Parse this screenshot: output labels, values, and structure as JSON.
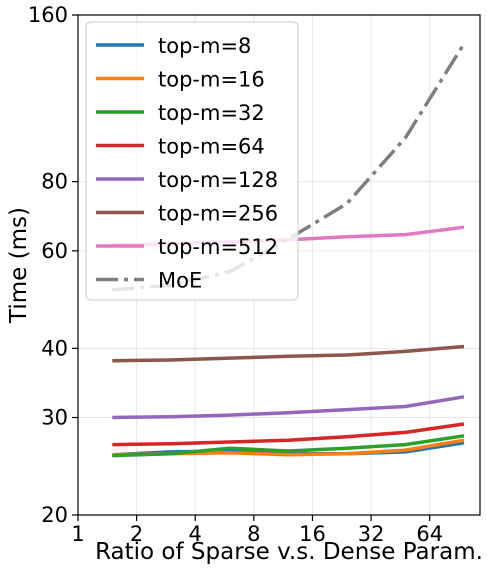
{
  "chart_data": {
    "type": "line",
    "xlabel": "Ratio of Sparse v.s. Dense Param.",
    "ylabel": "Time (ms)",
    "xscale": "log2",
    "yscale": "log",
    "xlim": [
      1,
      116
    ],
    "ylim": [
      20,
      160
    ],
    "xticks": [
      1,
      2,
      4,
      8,
      16,
      32,
      64
    ],
    "xtick_labels": [
      "1",
      "2",
      "4",
      "8",
      "16",
      "32",
      "64"
    ],
    "yticks": [
      20,
      30,
      40,
      60,
      80,
      160
    ],
    "ytick_labels": [
      "20",
      "30",
      "40",
      "60",
      "80",
      "160"
    ],
    "grid": true,
    "legend_position": "top-left",
    "x": [
      1.5,
      3,
      6,
      12,
      24,
      48,
      96
    ],
    "series": [
      {
        "name": "top-m=8",
        "color": "#1f77b4",
        "style": "solid",
        "values": [
          25.7,
          26.0,
          26.1,
          25.8,
          25.8,
          26.0,
          27.0
        ]
      },
      {
        "name": "top-m=16",
        "color": "#ff7f0e",
        "style": "solid",
        "values": [
          25.7,
          25.8,
          25.9,
          25.7,
          25.8,
          26.2,
          27.3
        ]
      },
      {
        "name": "top-m=32",
        "color": "#2ca02c",
        "style": "solid",
        "values": [
          25.6,
          25.8,
          26.4,
          26.1,
          26.4,
          26.8,
          27.8
        ]
      },
      {
        "name": "top-m=64",
        "color": "#d62728",
        "style": "solid",
        "values": [
          26.8,
          26.9,
          27.1,
          27.3,
          27.7,
          28.2,
          29.2
        ]
      },
      {
        "name": "top-m=128",
        "color": "#9467bd",
        "style": "solid",
        "values": [
          30.0,
          30.1,
          30.3,
          30.6,
          31.0,
          31.4,
          32.7
        ]
      },
      {
        "name": "top-m=256",
        "color": "#8c564b",
        "style": "solid",
        "values": [
          38.0,
          38.1,
          38.4,
          38.7,
          38.9,
          39.5,
          40.3
        ]
      },
      {
        "name": "top-m=512",
        "color": "#e377c2",
        "style": "solid",
        "values": [
          61.5,
          61.8,
          62.3,
          62.8,
          63.6,
          64.2,
          66.2
        ]
      },
      {
        "name": "MoE",
        "color": "#7f7f7f",
        "style": "dashdot",
        "values": [
          51.0,
          52.0,
          55.0,
          63.0,
          73.0,
          96.0,
          142.0
        ]
      }
    ]
  }
}
